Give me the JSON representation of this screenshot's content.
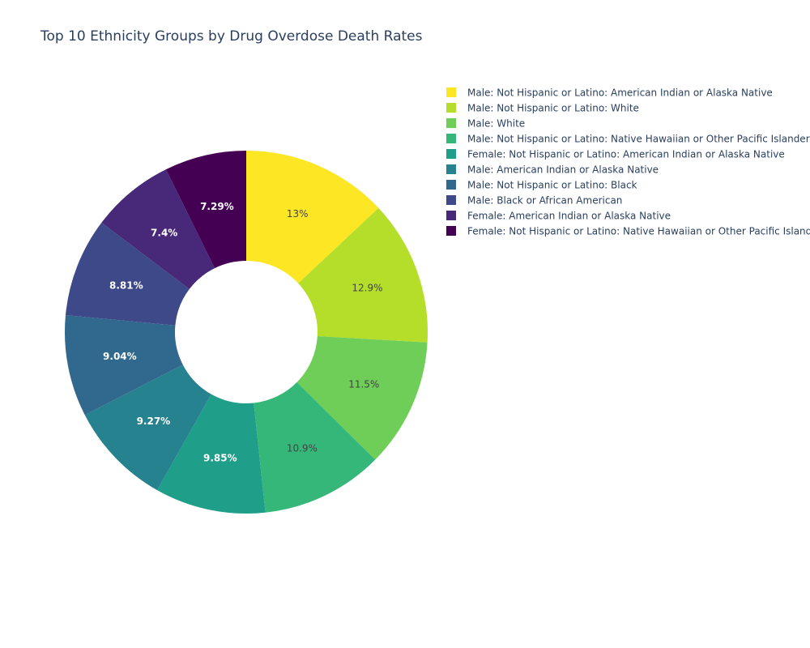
{
  "chart_data": {
    "type": "pie",
    "hole": true,
    "title": "Top 10 Ethnicity Groups by Drug Overdose Death Rates",
    "legend_position": "top-right",
    "slices": [
      {
        "label": "Male: Not Hispanic or Latino: American Indian or Alaska Native",
        "percent": 13.0,
        "percent_text": "13%",
        "color": "#fde725",
        "text_color": "#444444"
      },
      {
        "label": "Male: Not Hispanic or Latino: White",
        "percent": 12.9,
        "percent_text": "12.9%",
        "color": "#b5de2b",
        "text_color": "#444444"
      },
      {
        "label": "Male: White",
        "percent": 11.5,
        "percent_text": "11.5%",
        "color": "#6ece58",
        "text_color": "#444444"
      },
      {
        "label": "Male: Not Hispanic or Latino: Native Hawaiian or Other Pacific Islander",
        "percent": 10.9,
        "percent_text": "10.9%",
        "color": "#35b779",
        "text_color": "#444444"
      },
      {
        "label": "Female: Not Hispanic or Latino: American Indian or Alaska Native",
        "percent": 9.85,
        "percent_text": "9.85%",
        "color": "#1f9e89",
        "text_color": "#ffffff"
      },
      {
        "label": "Male: American Indian or Alaska Native",
        "percent": 9.27,
        "percent_text": "9.27%",
        "color": "#26828e",
        "text_color": "#ffffff"
      },
      {
        "label": "Male: Not Hispanic or Latino: Black",
        "percent": 9.04,
        "percent_text": "9.04%",
        "color": "#31688e",
        "text_color": "#ffffff"
      },
      {
        "label": "Male: Black or African American",
        "percent": 8.81,
        "percent_text": "8.81%",
        "color": "#3e4989",
        "text_color": "#ffffff"
      },
      {
        "label": "Female: American Indian or Alaska Native",
        "percent": 7.4,
        "percent_text": "7.4%",
        "color": "#482878",
        "text_color": "#ffffff"
      },
      {
        "label": "Female: Not Hispanic or Latino: Native Hawaiian or Other Pacific Islander",
        "percent": 7.29,
        "percent_text": "7.29%",
        "color": "#440154",
        "text_color": "#ffffff"
      }
    ]
  }
}
